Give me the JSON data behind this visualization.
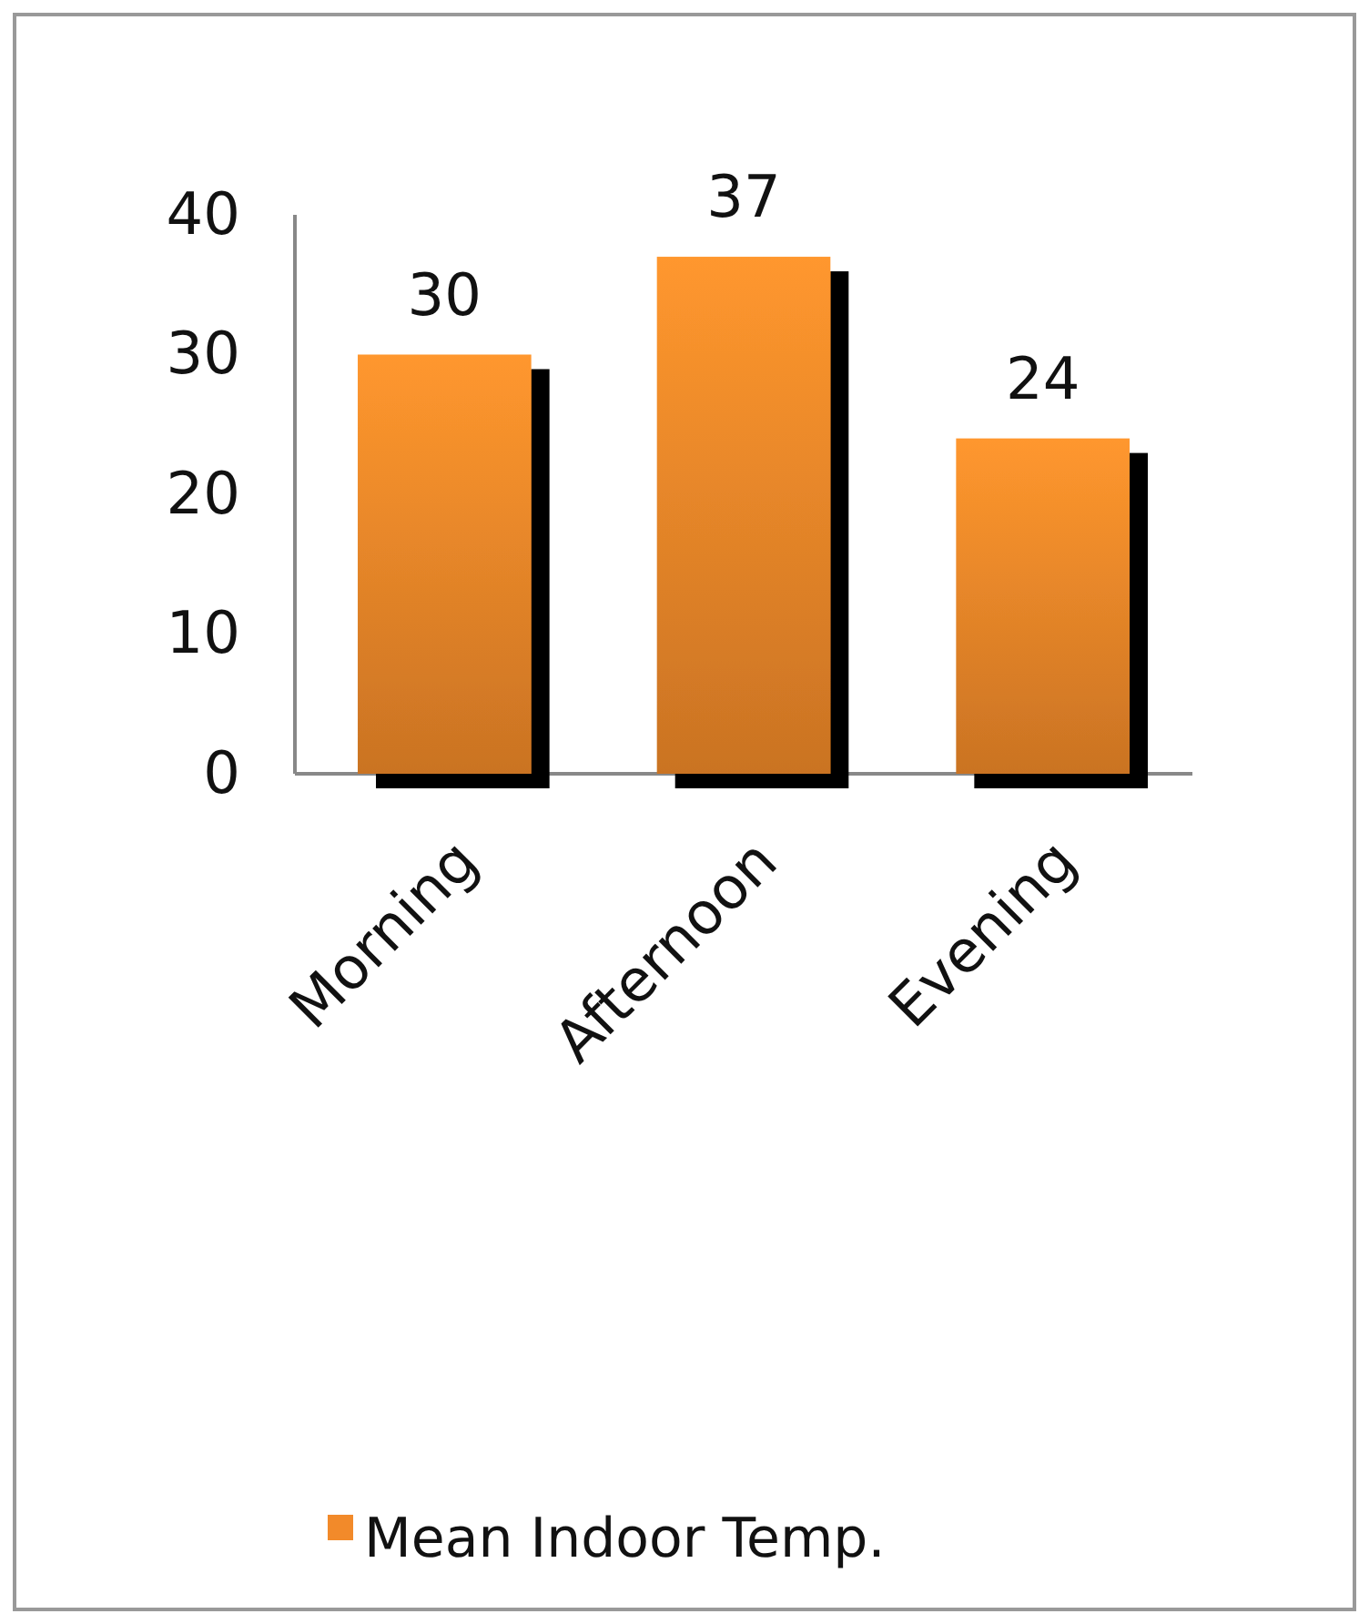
{
  "chart_data": {
    "type": "bar",
    "categories": [
      "Morning",
      "Afternoon",
      "Evening"
    ],
    "series": [
      {
        "name": "Mean Indoor Temp.",
        "color": "#f28a2a",
        "values": [
          30,
          37,
          24
        ]
      }
    ],
    "ylim": [
      0,
      40
    ],
    "yticks": [
      0,
      10,
      20,
      30,
      40
    ],
    "grid": false,
    "legend": "bottom",
    "data_labels": true
  }
}
